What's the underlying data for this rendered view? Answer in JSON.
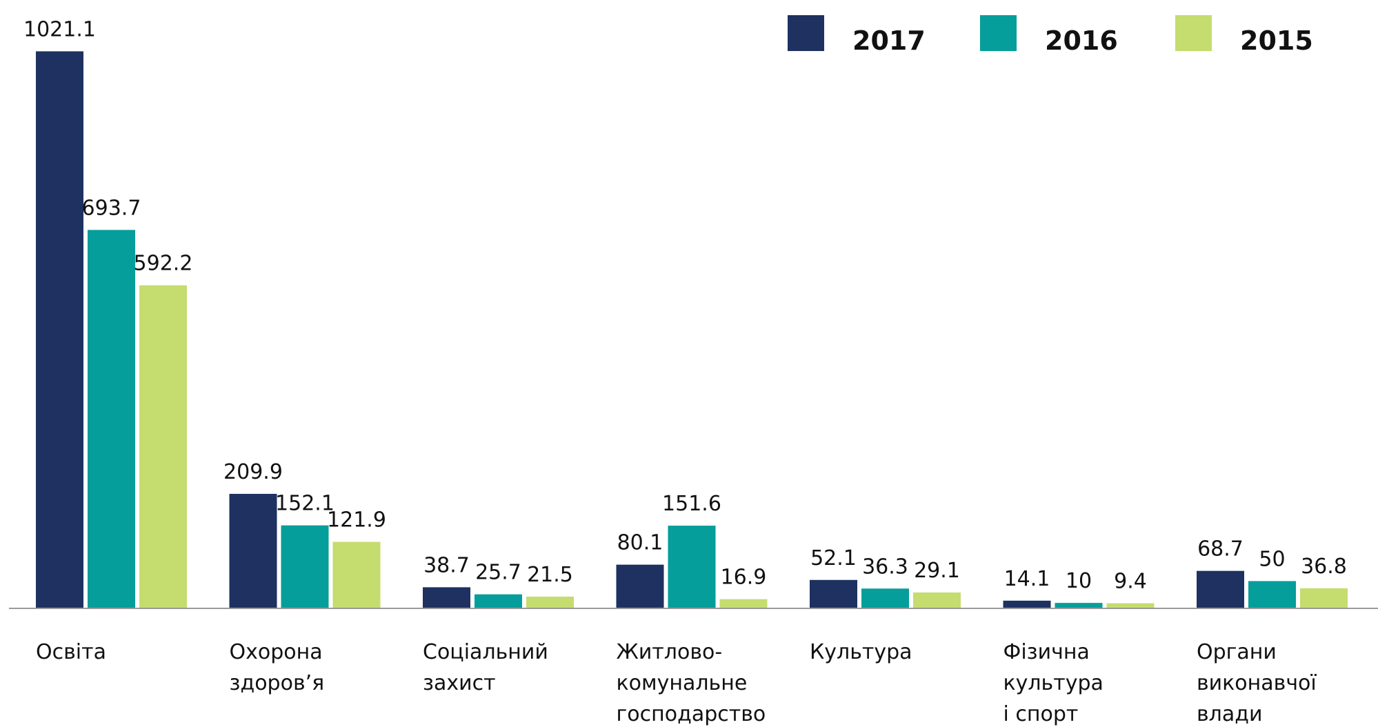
{
  "chart_data": {
    "type": "bar",
    "categories": [
      [
        "Освіта"
      ],
      [
        "Охорона",
        "здоров’я"
      ],
      [
        "Соціальний",
        "захист"
      ],
      [
        "Житлово-",
        "комунальне",
        "господарство"
      ],
      [
        "Культура"
      ],
      [
        "Фізична",
        "культура",
        "і спорт"
      ],
      [
        "Органи",
        "виконавчої",
        "влади"
      ]
    ],
    "series": [
      {
        "name": "2017",
        "color": "#1e3160",
        "values": [
          1021.1,
          209.9,
          38.7,
          80.1,
          52.1,
          14.1,
          68.7
        ]
      },
      {
        "name": "2016",
        "color": "#069e9a",
        "values": [
          693.7,
          152.1,
          25.7,
          151.6,
          36.3,
          10,
          50
        ]
      },
      {
        "name": "2015",
        "color": "#c5dc6e",
        "values": [
          592.2,
          121.9,
          21.5,
          16.9,
          29.1,
          9.4,
          36.8
        ]
      }
    ],
    "ylim": [
      0,
      1100
    ],
    "legend": "top-right"
  }
}
